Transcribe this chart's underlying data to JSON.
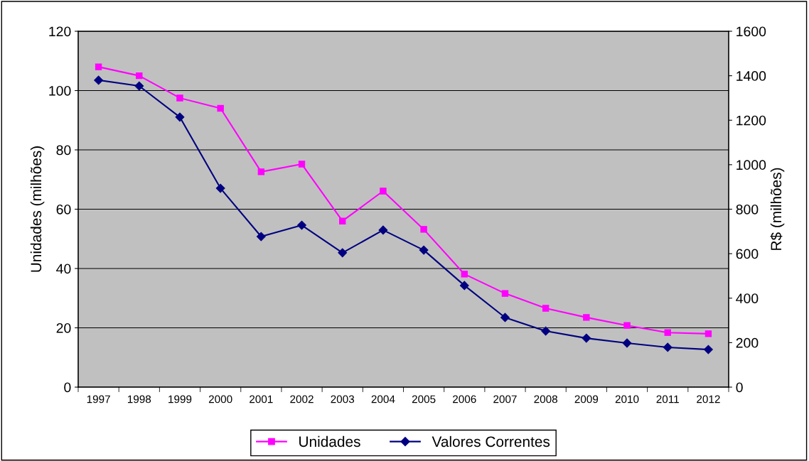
{
  "chart_data": {
    "type": "line",
    "categories": [
      "1997",
      "1998",
      "1999",
      "2000",
      "2001",
      "2002",
      "2003",
      "2004",
      "2005",
      "2006",
      "2007",
      "2008",
      "2009",
      "2010",
      "2011",
      "2012"
    ],
    "series": [
      {
        "name": "Unidades",
        "color": "#ff00ff",
        "marker": "square",
        "values": [
          108,
          105,
          97.5,
          94,
          72.6,
          75.2,
          56,
          66.1,
          53.2,
          38.1,
          31.6,
          26.6,
          23.5,
          20.8,
          18.4,
          18
        ]
      },
      {
        "name": "Valores Correntes",
        "color": "#000080",
        "marker": "diamond",
        "axis": "y2",
        "values": [
          1380,
          1354,
          1214,
          894,
          677,
          728,
          604,
          706,
          616,
          457,
          313,
          252,
          220,
          198,
          179,
          169
        ]
      }
    ],
    "ylabel": "Unidades (milhões)",
    "y2label": "R$ (milhões)",
    "ylim": [
      0,
      120
    ],
    "yticks": [
      0,
      20,
      40,
      60,
      80,
      100,
      120
    ],
    "y2lim": [
      0,
      1600
    ],
    "y2ticks": [
      0,
      200,
      400,
      600,
      800,
      1000,
      1200,
      1400,
      1600
    ],
    "grid": "y",
    "legend": "bottom",
    "line_style": "solid"
  }
}
